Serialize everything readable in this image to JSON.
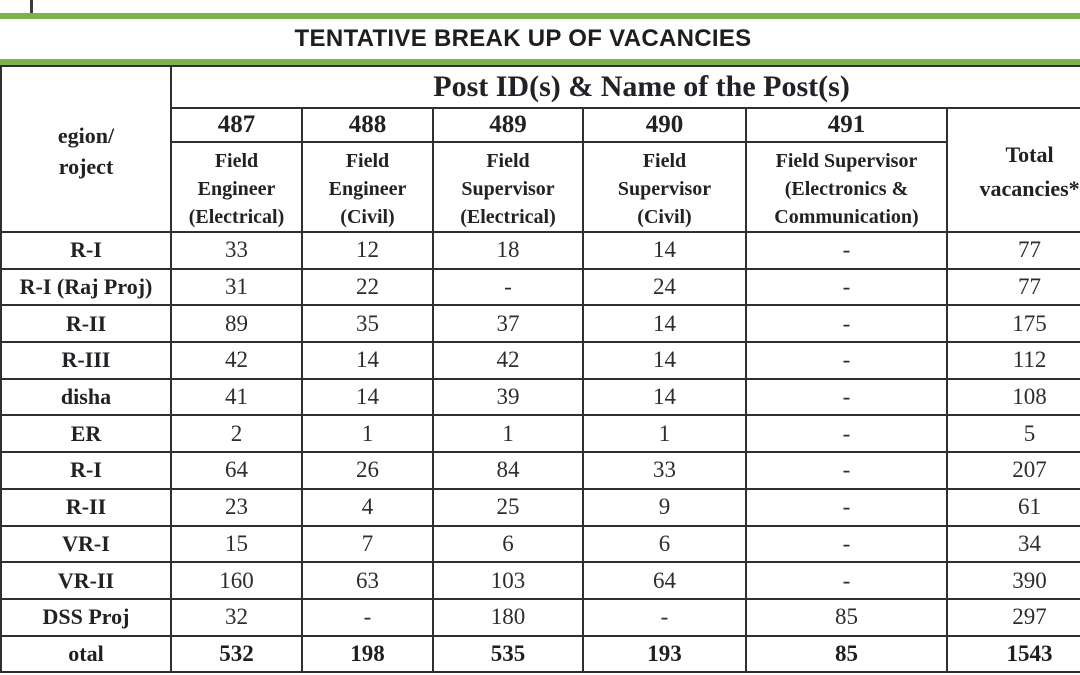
{
  "title": "TENTATIVE BREAK UP OF VACANCIES",
  "accent_color": "#7cb34e",
  "table": {
    "region_header_lines": [
      "egion/",
      "roject"
    ],
    "post_header": "Post ID(s) & Name of the Post(s)",
    "total_header_lines": [
      "Total",
      "vacancies*"
    ],
    "columns": [
      {
        "id": "487",
        "name_lines": [
          "Field",
          "Engineer",
          "(Electrical)"
        ]
      },
      {
        "id": "488",
        "name_lines": [
          "Field",
          "Engineer",
          "(Civil)"
        ]
      },
      {
        "id": "489",
        "name_lines": [
          "Field",
          "Supervisor",
          "(Electrical)"
        ]
      },
      {
        "id": "490",
        "name_lines": [
          "Field",
          "Supervisor",
          "(Civil)"
        ]
      },
      {
        "id": "491",
        "name_lines": [
          "Field Supervisor",
          "(Electronics &",
          "Communication)"
        ]
      }
    ],
    "rows": [
      {
        "region": "R-I",
        "values": [
          "33",
          "12",
          "18",
          "14",
          "-"
        ],
        "total": "77"
      },
      {
        "region": "R-I (Raj Proj)",
        "values": [
          "31",
          "22",
          "-",
          "24",
          "-"
        ],
        "total": "77"
      },
      {
        "region": "R-II",
        "values": [
          "89",
          "35",
          "37",
          "14",
          "-"
        ],
        "total": "175"
      },
      {
        "region": "R-III",
        "values": [
          "42",
          "14",
          "42",
          "14",
          "-"
        ],
        "total": "112"
      },
      {
        "region": "disha",
        "values": [
          "41",
          "14",
          "39",
          "14",
          "-"
        ],
        "total": "108"
      },
      {
        "region": "ER",
        "values": [
          "2",
          "1",
          "1",
          "1",
          "-"
        ],
        "total": "5"
      },
      {
        "region": "R-I",
        "values": [
          "64",
          "26",
          "84",
          "33",
          "-"
        ],
        "total": "207"
      },
      {
        "region": "R-II",
        "values": [
          "23",
          "4",
          "25",
          "9",
          "-"
        ],
        "total": "61"
      },
      {
        "region": "VR-I",
        "values": [
          "15",
          "7",
          "6",
          "6",
          "-"
        ],
        "total": "34"
      },
      {
        "region": "VR-II",
        "values": [
          "160",
          "63",
          "103",
          "64",
          "-"
        ],
        "total": "390"
      },
      {
        "region": "DSS Proj",
        "values": [
          "32",
          "-",
          "180",
          "-",
          "85"
        ],
        "total": "297"
      },
      {
        "region": "otal",
        "values": [
          "532",
          "198",
          "535",
          "193",
          "85"
        ],
        "total": "1543"
      }
    ]
  }
}
